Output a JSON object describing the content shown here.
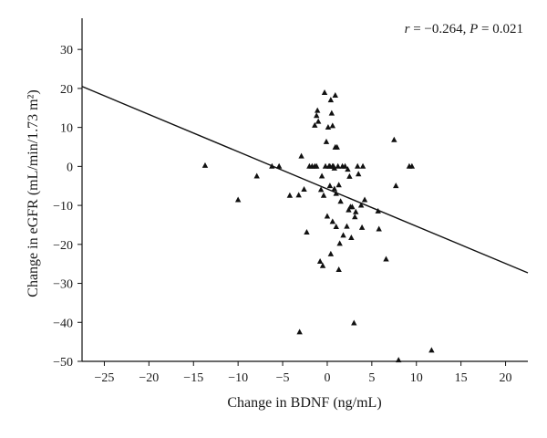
{
  "chart_data": {
    "type": "scatter",
    "title": "",
    "xlabel": "Change in BDNF (ng/mL)",
    "ylabel": "Change in eGFR (mL/min/1.73 m²)",
    "xlim": [
      -27.5,
      22.5
    ],
    "ylim": [
      -50,
      38
    ],
    "xticks": [
      -25,
      -20,
      -15,
      -10,
      -5,
      0,
      5,
      10,
      15,
      20
    ],
    "yticks": [
      -50,
      -40,
      -30,
      -20,
      -10,
      0,
      10,
      20,
      30
    ],
    "xtick_labels": [
      "−25",
      "−20",
      "−15",
      "−10",
      "−5",
      "0",
      "5",
      "10",
      "15",
      "20"
    ],
    "ytick_labels": [
      "−50",
      "−40",
      "−30",
      "−20",
      "−10",
      "0",
      "10",
      "20",
      "30"
    ],
    "annotation": {
      "r_label": "r",
      "r_text": " = −0.264, ",
      "p_label": "P",
      "p_text": " = 0.021"
    },
    "regression": {
      "x": [
        -27.5,
        22.5
      ],
      "y": [
        20.5,
        -27.3
      ]
    },
    "grid": false,
    "marker": "triangle",
    "points": [
      [
        -13.7,
        0.2
      ],
      [
        -10.0,
        -8.6
      ],
      [
        -7.9,
        -2.5
      ],
      [
        -6.2,
        0.0
      ],
      [
        -5.4,
        0.0
      ],
      [
        -4.2,
        -7.5
      ],
      [
        -3.2,
        -7.4
      ],
      [
        -2.9,
        2.6
      ],
      [
        -2.6,
        -5.9
      ],
      [
        -2.3,
        -16.9
      ],
      [
        -2.0,
        0.0
      ],
      [
        -1.7,
        0.0
      ],
      [
        -1.4,
        10.5
      ],
      [
        -1.2,
        13.0
      ],
      [
        -1.1,
        14.3
      ],
      [
        -1.2,
        0.0
      ],
      [
        -1.0,
        11.5
      ],
      [
        -0.8,
        -24.4
      ],
      [
        -0.7,
        -6.0
      ],
      [
        -0.6,
        -2.5
      ],
      [
        -0.5,
        -25.5
      ],
      [
        -0.4,
        -7.5
      ],
      [
        -0.3,
        18.9
      ],
      [
        -0.1,
        6.3
      ],
      [
        0.0,
        -12.8
      ],
      [
        0.1,
        10.0
      ],
      [
        0.2,
        0.0
      ],
      [
        0.3,
        -5.0
      ],
      [
        0.4,
        -22.5
      ],
      [
        0.4,
        17.0
      ],
      [
        0.5,
        13.6
      ],
      [
        0.6,
        -14.2
      ],
      [
        0.6,
        10.4
      ],
      [
        0.7,
        0.0
      ],
      [
        0.8,
        -5.8
      ],
      [
        0.9,
        18.2
      ],
      [
        0.8,
        -0.5
      ],
      [
        0.9,
        4.9
      ],
      [
        1.0,
        -15.5
      ],
      [
        1.1,
        4.9
      ],
      [
        1.0,
        -7.0
      ],
      [
        1.2,
        0.0
      ],
      [
        1.3,
        -4.8
      ],
      [
        1.3,
        -26.5
      ],
      [
        1.4,
        -19.8
      ],
      [
        1.5,
        -9.0
      ],
      [
        1.7,
        0.0
      ],
      [
        1.8,
        -17.7
      ],
      [
        2.0,
        0.0
      ],
      [
        2.2,
        -15.4
      ],
      [
        2.3,
        -0.8
      ],
      [
        2.4,
        -11.2
      ],
      [
        2.5,
        -2.6
      ],
      [
        2.6,
        -10.4
      ],
      [
        2.7,
        -18.3
      ],
      [
        2.8,
        -10.4
      ],
      [
        3.0,
        -40.2
      ],
      [
        3.1,
        -13.0
      ],
      [
        3.2,
        -11.7
      ],
      [
        3.4,
        0.0
      ],
      [
        3.5,
        -2.0
      ],
      [
        3.8,
        -10.0
      ],
      [
        3.9,
        -15.7
      ],
      [
        4.0,
        0.0
      ],
      [
        4.2,
        -8.6
      ],
      [
        -3.1,
        -42.5
      ],
      [
        5.7,
        -11.5
      ],
      [
        5.8,
        -16.1
      ],
      [
        6.6,
        -23.8
      ],
      [
        7.5,
        6.8
      ],
      [
        7.7,
        -5.0
      ],
      [
        8.0,
        -49.7
      ],
      [
        9.2,
        0.0
      ],
      [
        9.5,
        0.0
      ],
      [
        11.7,
        -47.2
      ],
      [
        -1.4,
        0.0
      ],
      [
        -0.2,
        0.0
      ],
      [
        0.3,
        0.0
      ],
      [
        0.6,
        0.0
      ]
    ]
  }
}
